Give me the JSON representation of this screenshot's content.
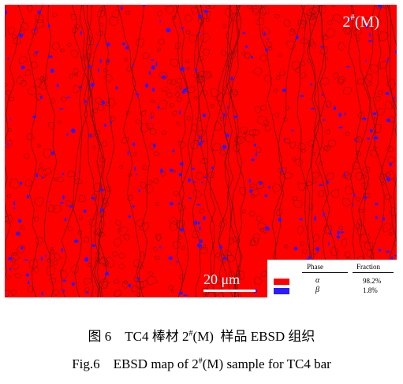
{
  "figure": {
    "sample_label": {
      "pre": "2",
      "sup": "#",
      "post": "(M)"
    },
    "scale_label": "20 μm",
    "colors": {
      "alpha": "#ff0000",
      "beta": "#2a1cff",
      "grain_boundary": "#3a1a1a"
    },
    "legend": {
      "header_phase": "Phase",
      "header_fraction": "Fraction",
      "rows": [
        {
          "symbol": "α",
          "fraction": "98.2%",
          "color": "#ff0000"
        },
        {
          "symbol": "β",
          "fraction": "1.8%",
          "color": "#2a1cff"
        }
      ]
    }
  },
  "caption": {
    "cn_pre": "图 6    TC4 棒材 2",
    "cn_sup": "#",
    "cn_post": "(M)  样品 EBSD 组织",
    "en_pre": "Fig.6    EBSD map of 2",
    "en_sup": "#",
    "en_post": "(M) sample for TC4 bar"
  }
}
